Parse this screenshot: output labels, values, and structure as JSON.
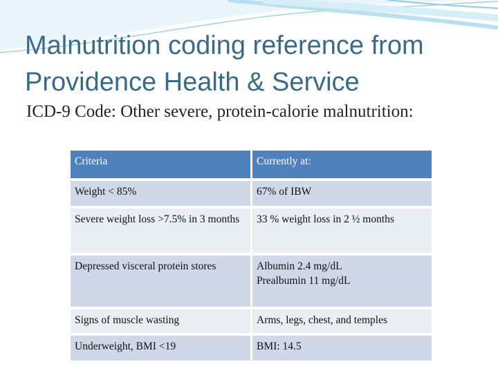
{
  "title": "Malnutrition coding reference from Providence Health & Service",
  "subtitle": "ICD-9 Code: Other severe, protein-calorie malnutrition:",
  "table": {
    "header": [
      "Criteria",
      "Currently at:"
    ],
    "rows": [
      [
        "Weight < 85%",
        "67% of IBW"
      ],
      [
        "Severe weight loss >7.5% in 3 months",
        "33 % weight loss in 2 ½ months"
      ],
      [
        "Depressed visceral protein stores",
        [
          "Albumin 2.4 mg/dL",
          "Prealbumin 11 mg/dL"
        ]
      ],
      [
        "Signs of muscle wasting",
        "Arms, legs, chest, and temples"
      ],
      [
        "Underweight, BMI <19",
        "BMI: 14.5"
      ]
    ]
  }
}
